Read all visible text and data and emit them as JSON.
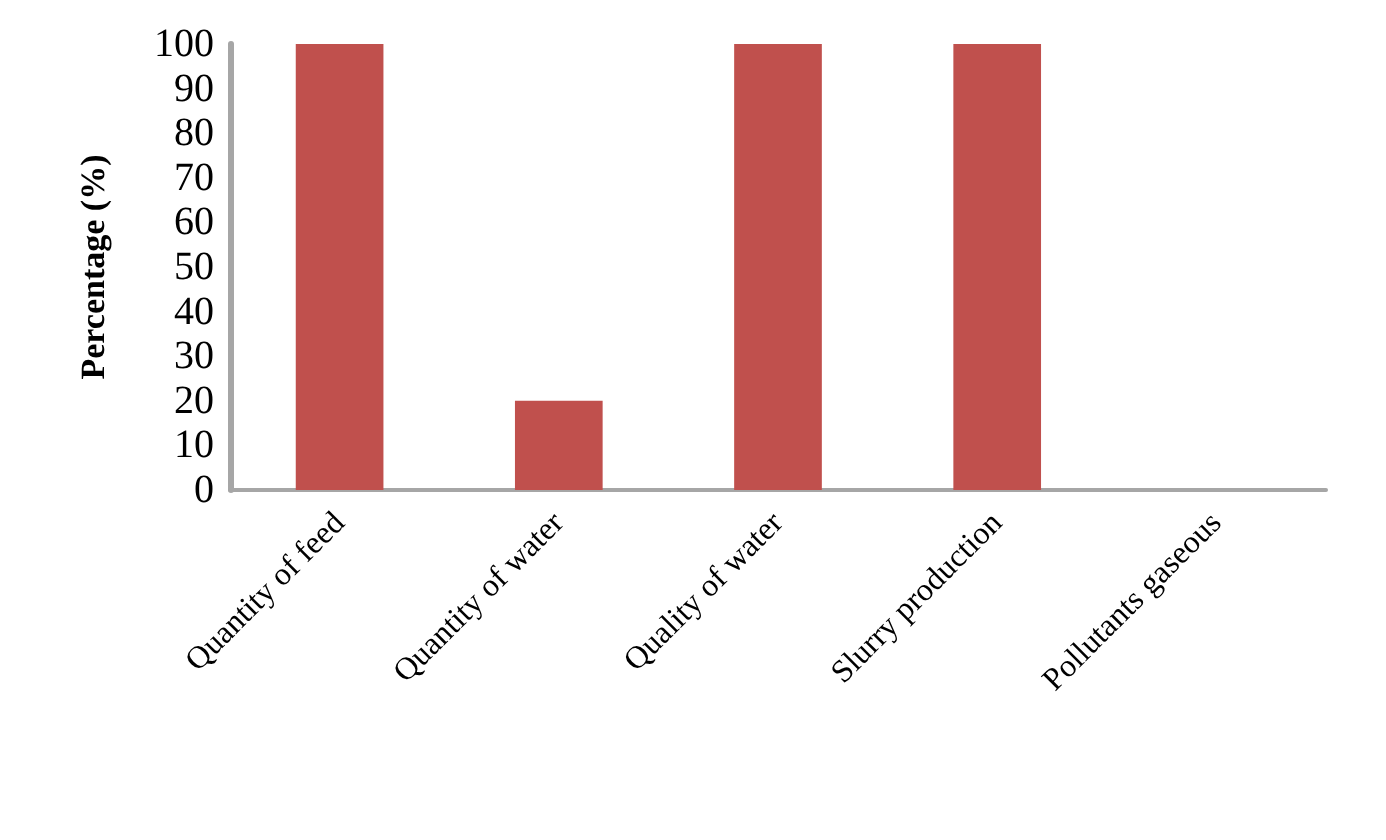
{
  "chart_data": {
    "type": "bar",
    "ylabel": "Percentage (%)",
    "categories": [
      "Quantity of feed",
      "Quantity of water",
      "Quality of water",
      "Slurry production",
      "Pollutants gaseous"
    ],
    "values": [
      100,
      20,
      100,
      100,
      0
    ],
    "color": "#c0504d",
    "ylim": [
      0,
      100
    ],
    "yticks": [
      0,
      10,
      20,
      30,
      40,
      50,
      60,
      70,
      80,
      90,
      100
    ],
    "grid": false
  }
}
